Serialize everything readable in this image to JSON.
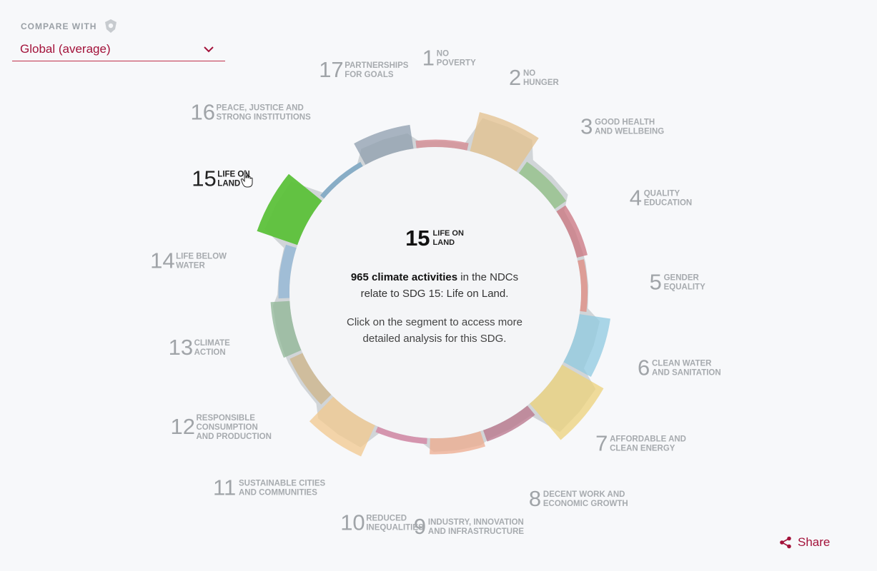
{
  "compare": {
    "label": "COMPARE WITH",
    "selected": "Global (average)"
  },
  "center": {
    "number": "15",
    "name_line1": "LIFE ON",
    "name_line2": "LAND",
    "count_text": "965 climate activities",
    "desc_rest1": "in the NDCs",
    "desc_line2": "relate to SDG 15: Life on Land.",
    "hint_line1": "Click on the segment to access more",
    "hint_line2": "detailed analysis for this SDG."
  },
  "share": {
    "label": "Share"
  },
  "colors": {
    "accent": "#a3123a",
    "selected": "#5cc13a",
    "global_band": "#c4c9cc"
  },
  "chart_data": {
    "type": "radial-bar",
    "selected_index": 14,
    "categories": [
      {
        "num": "1",
        "l1": "NO",
        "l2": "POVERTY",
        "l3": "",
        "color": "#d4878f"
      },
      {
        "num": "2",
        "l1": "NO",
        "l2": "HUNGER",
        "l3": "",
        "color": "#e3c08c"
      },
      {
        "num": "3",
        "l1": "GOOD HEALTH",
        "l2": "AND WELLBEING",
        "l3": "",
        "color": "#8fbf84"
      },
      {
        "num": "4",
        "l1": "QUALITY",
        "l2": "EDUCATION",
        "l3": "",
        "color": "#c9737e"
      },
      {
        "num": "5",
        "l1": "GENDER",
        "l2": "EQUALITY",
        "l3": "",
        "color": "#e08a80"
      },
      {
        "num": "6",
        "l1": "CLEAN WATER",
        "l2": "AND SANITATION",
        "l3": "",
        "color": "#8fc9e0"
      },
      {
        "num": "7",
        "l1": "AFFORDABLE AND",
        "l2": "CLEAN ENERGY",
        "l3": "",
        "color": "#ecd27a"
      },
      {
        "num": "8",
        "l1": "DECENT WORK AND",
        "l2": "ECONOMIC GROWTH",
        "l3": "",
        "color": "#b8738a"
      },
      {
        "num": "9",
        "l1": "INDUSTRY, INNOVATION",
        "l2": "AND INFRASTRUCTURE",
        "l3": "",
        "color": "#eeab8e"
      },
      {
        "num": "10",
        "l1": "REDUCED",
        "l2": "INEQUALITIES",
        "l3": "",
        "color": "#d47fa0"
      },
      {
        "num": "11",
        "l1": "SUSTAINABLE CITIES",
        "l2": "AND COMMUNITIES",
        "l3": "",
        "color": "#f2c88e"
      },
      {
        "num": "12",
        "l1": "RESPONSIBLE",
        "l2": "CONSUMPTION",
        "l3": "AND PRODUCTION",
        "color": "#cdb48a"
      },
      {
        "num": "13",
        "l1": "CLIMATE",
        "l2": "ACTION",
        "l3": "",
        "color": "#8fb596"
      },
      {
        "num": "14",
        "l1": "LIFE BELOW",
        "l2": "WATER",
        "l3": "",
        "color": "#8fb4d6"
      },
      {
        "num": "15",
        "l1": "LIFE ON",
        "l2": "LAND",
        "l3": "",
        "color": "#5cc13a"
      },
      {
        "num": "16",
        "l1": "PEACE, JUSTICE AND",
        "l2": "STRONG INSTITUTIONS",
        "l3": "",
        "color": "#6f9fc0"
      },
      {
        "num": "17",
        "l1": "PARTNERSHIPS",
        "l2": "FOR GOALS",
        "l3": "",
        "color": "#8d9ead"
      }
    ],
    "values": [
      5,
      70,
      18,
      12,
      3,
      52,
      85,
      14,
      22,
      2,
      58,
      18,
      28,
      12,
      75,
      0,
      38
    ],
    "global": [
      3,
      60,
      28,
      4,
      5,
      32,
      72,
      10,
      17,
      2,
      42,
      24,
      24,
      14,
      62,
      0,
      22
    ]
  }
}
